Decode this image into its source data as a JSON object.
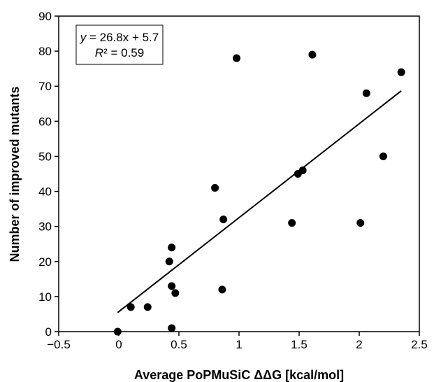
{
  "chart_data": {
    "type": "scatter",
    "xlabel": "Average PoPMuSiC ΔΔG [kcal/mol]",
    "ylabel": "Number of improved mutants",
    "xlim": [
      -0.5,
      2.5
    ],
    "ylim": [
      0,
      90
    ],
    "x_ticks": [
      -0.5,
      0,
      0.5,
      1,
      1.5,
      2,
      2.5
    ],
    "x_tick_labels": [
      "−0.5",
      "0",
      "0.5",
      "1",
      "1.5",
      "2",
      "2.5"
    ],
    "y_ticks": [
      0,
      10,
      20,
      30,
      40,
      50,
      60,
      70,
      80,
      90
    ],
    "y_tick_labels": [
      "0",
      "10",
      "20",
      "30",
      "40",
      "50",
      "60",
      "70",
      "80",
      "90"
    ],
    "grid": false,
    "points": [
      {
        "x": -0.01,
        "y": 0
      },
      {
        "x": 0.1,
        "y": 7
      },
      {
        "x": 0.24,
        "y": 7
      },
      {
        "x": 0.42,
        "y": 20
      },
      {
        "x": 0.44,
        "y": 24
      },
      {
        "x": 0.44,
        "y": 13
      },
      {
        "x": 0.44,
        "y": 1
      },
      {
        "x": 0.47,
        "y": 11
      },
      {
        "x": 0.8,
        "y": 41
      },
      {
        "x": 0.86,
        "y": 12
      },
      {
        "x": 0.87,
        "y": 32
      },
      {
        "x": 0.98,
        "y": 78
      },
      {
        "x": 1.44,
        "y": 31
      },
      {
        "x": 1.49,
        "y": 45
      },
      {
        "x": 1.53,
        "y": 46
      },
      {
        "x": 1.61,
        "y": 79
      },
      {
        "x": 2.01,
        "y": 31
      },
      {
        "x": 2.06,
        "y": 68
      },
      {
        "x": 2.2,
        "y": 50
      },
      {
        "x": 2.35,
        "y": 74
      }
    ],
    "trendline": {
      "slope": 26.8,
      "intercept": 5.7,
      "x_range": [
        -0.01,
        2.35
      ]
    },
    "equation": {
      "y_var": "y",
      "equation_rest": " = 26.8x + 5.7",
      "r2_var": "R",
      "r2_rest": "² = 0.59"
    },
    "point_color": "#000000",
    "line_color": "#000000"
  }
}
